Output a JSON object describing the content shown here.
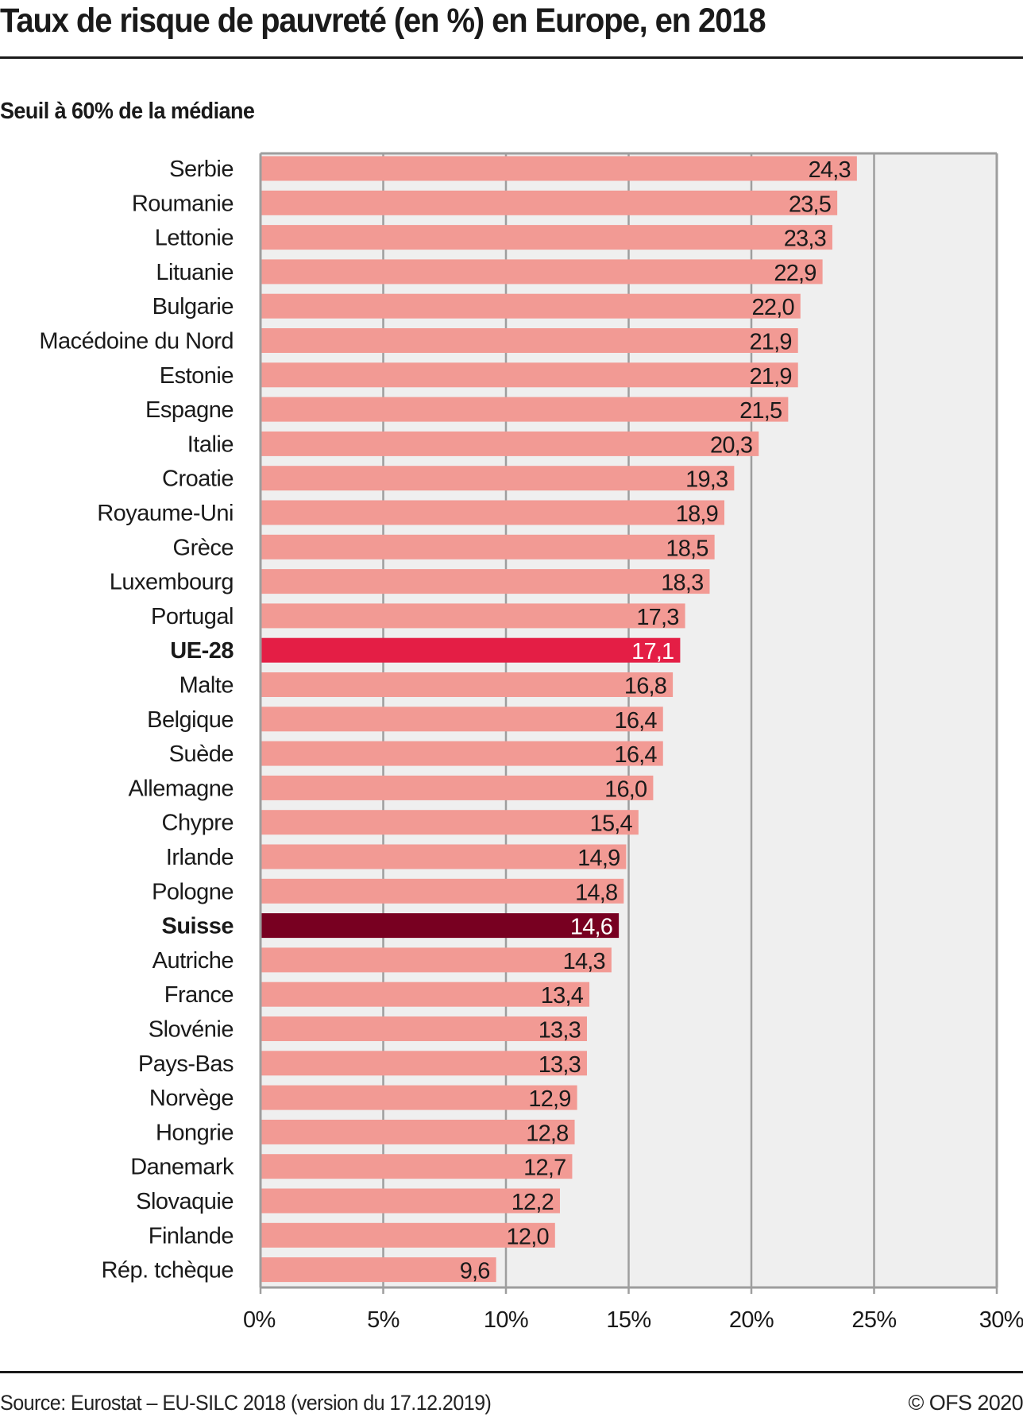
{
  "header": {
    "title": "Taux de risque de pauvreté (en %) en Europe, en 2018",
    "subtitle": "Seuil à 60% de la médiane"
  },
  "footer": {
    "source": "Source: Eurostat – EU-SILC 2018 (version du 17.12.2019)",
    "copyright": "© OFS 2020"
  },
  "colors": {
    "bar_default": "#f29a94",
    "bar_eu": "#e41e45",
    "bar_switzerland": "#780021",
    "plot_background": "#efefef",
    "grid": "#9e9e9e"
  },
  "chart_data": {
    "type": "bar",
    "orientation": "horizontal",
    "title": "Taux de risque de pauvreté (en %) en Europe, en 2018",
    "subtitle": "Seuil à 60% de la médiane",
    "xlabel": "",
    "ylabel": "",
    "xlim": [
      0,
      30
    ],
    "x_ticks": [
      0,
      5,
      10,
      15,
      20,
      25,
      30
    ],
    "x_tick_labels": [
      "0%",
      "5%",
      "10%",
      "15%",
      "20%",
      "25%",
      "30%"
    ],
    "grid": true,
    "legend": "none",
    "categories": [
      "Serbie",
      "Roumanie",
      "Lettonie",
      "Lituanie",
      "Bulgarie",
      "Macédoine du Nord",
      "Estonie",
      "Espagne",
      "Italie",
      "Croatie",
      "Royaume-Uni",
      "Grèce",
      "Luxembourg",
      "Portugal",
      "UE-28",
      "Malte",
      "Belgique",
      "Suède",
      "Allemagne",
      "Chypre",
      "Irlande",
      "Pologne",
      "Suisse",
      "Autriche",
      "France",
      "Slovénie",
      "Pays-Bas",
      "Norvège",
      "Hongrie",
      "Danemark",
      "Slovaquie",
      "Finlande",
      "Rép. tchèque"
    ],
    "values": [
      24.3,
      23.5,
      23.3,
      22.9,
      22.0,
      21.9,
      21.9,
      21.5,
      20.3,
      19.3,
      18.9,
      18.5,
      18.3,
      17.3,
      17.1,
      16.8,
      16.4,
      16.4,
      16.0,
      15.4,
      14.9,
      14.8,
      14.6,
      14.3,
      13.4,
      13.3,
      13.3,
      12.9,
      12.8,
      12.7,
      12.2,
      12.0,
      9.6
    ],
    "value_labels": [
      "24,3",
      "23,5",
      "23,3",
      "22,9",
      "22,0",
      "21,9",
      "21,9",
      "21,5",
      "20,3",
      "19,3",
      "18,9",
      "18,5",
      "18,3",
      "17,3",
      "17,1",
      "16,8",
      "16,4",
      "16,4",
      "16,0",
      "15,4",
      "14,9",
      "14,8",
      "14,6",
      "14,3",
      "13,4",
      "13,3",
      "13,3",
      "12,9",
      "12,8",
      "12,7",
      "12,2",
      "12,0",
      "9,6"
    ],
    "highlights": {
      "UE-28": "eu",
      "Suisse": "switzerland"
    }
  }
}
